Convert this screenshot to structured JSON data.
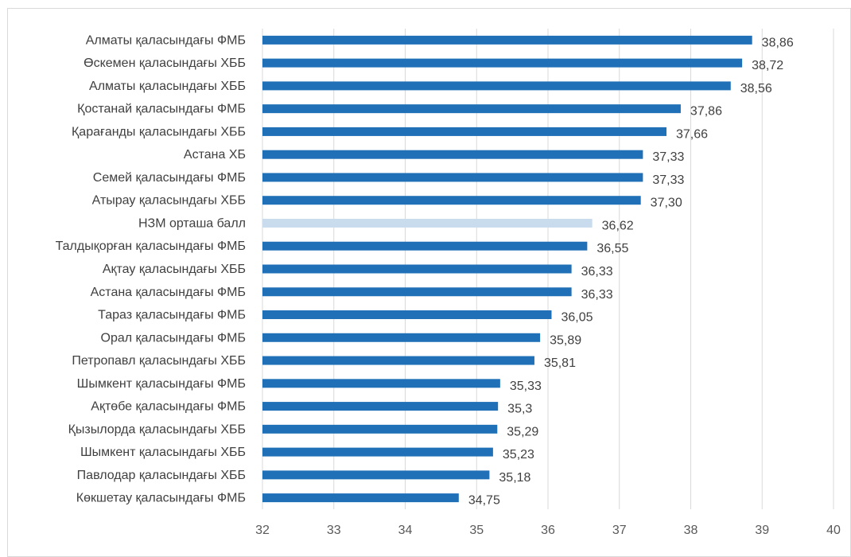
{
  "chart_data": {
    "type": "bar",
    "orientation": "horizontal",
    "categories": [
      "Алматы қаласындағы ФМБ",
      "Өскемен қаласындағы ХББ",
      "Алматы қаласындағы ХББ",
      "Қостанай қаласындағы ФМБ",
      "Қарағанды қаласындағы ХББ",
      "Астана ХБ",
      "Семей қаласындағы ФМБ",
      "Атырау қаласындағы ХББ",
      "НЗМ орташа балл",
      "Талдықорған қаласындағы ФМБ",
      "Ақтау қаласындағы ХББ",
      "Астана қаласындағы ФМБ",
      "Тараз қаласындағы ФМБ",
      "Орал қаласындағы ФМБ",
      "Петропавл қаласындағы ХББ",
      "Шымкент қаласындағы  ФМБ",
      "Ақтөбе қаласындағы ФМБ",
      "Қызылорда қаласындағы ХББ",
      "Шымкент қаласындағы ХББ",
      "Павлодар қаласындағы ХББ",
      "Көкшетау қаласындағы ФМБ"
    ],
    "values": [
      38.86,
      38.72,
      38.56,
      37.86,
      37.66,
      37.33,
      37.33,
      37.3,
      36.62,
      36.55,
      36.33,
      36.33,
      36.05,
      35.89,
      35.81,
      35.33,
      35.3,
      35.29,
      35.23,
      35.18,
      34.75
    ],
    "value_labels": [
      "38,86",
      "38,72",
      "38,56",
      "37,86",
      "37,66",
      "37,33",
      "37,33",
      "37,30",
      "36,62",
      "36,55",
      "36,33",
      "36,33",
      "36,05",
      "35,89",
      "35,81",
      "35,33",
      "35,3",
      "35,29",
      "35,23",
      "35,18",
      "34,75"
    ],
    "highlight_index": 8,
    "xlim": [
      32,
      40
    ],
    "x_ticks": [
      32,
      33,
      34,
      35,
      36,
      37,
      38,
      39,
      40
    ],
    "grid": "vertical",
    "colors": {
      "bar": "#2070b7",
      "highlight": "#c9dcee",
      "grid": "#d9d9d9",
      "text": "#404040"
    }
  }
}
